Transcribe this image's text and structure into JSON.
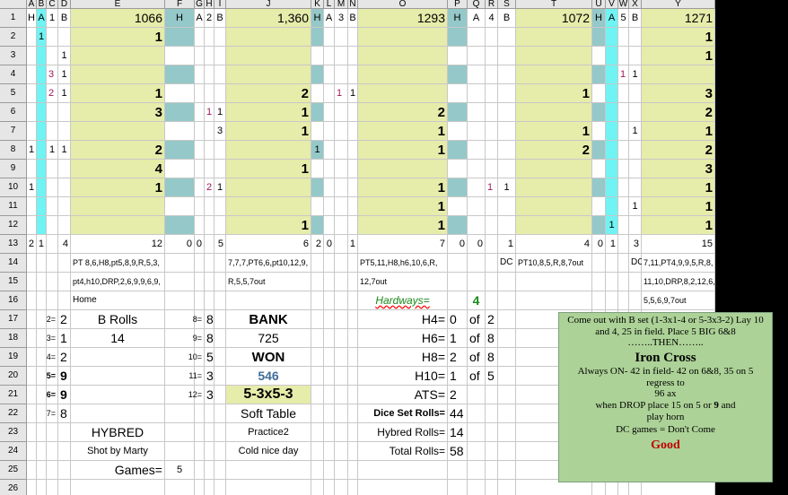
{
  "app": "Spreadsheet",
  "columns": [
    "A",
    "B",
    "C",
    "D",
    "E",
    "F",
    "G",
    "H",
    "I",
    "J",
    "K",
    "L",
    "M",
    "N",
    "O",
    "P",
    "Q",
    "R",
    "S",
    "T",
    "U",
    "V",
    "W",
    "X",
    "Y"
  ],
  "rows": [
    "1",
    "2",
    "3",
    "4",
    "5",
    "6",
    "7",
    "8",
    "9",
    "10",
    "11",
    "12",
    "13",
    "14",
    "15",
    "16",
    "17",
    "18",
    "19",
    "20",
    "21",
    "22",
    "23",
    "24",
    "25",
    "26"
  ],
  "cells": {
    "A1": "H",
    "B1": "A",
    "C1": "1",
    "D1": "B",
    "E1": "1066",
    "F1": "H",
    "G1": "A",
    "H1": "2",
    "I1": "B",
    "J1": "1,360",
    "K1": "H",
    "L1": "A",
    "M1": "3",
    "N1": "B",
    "O1": "1293",
    "P1": "H",
    "Q1": "A",
    "R1": "4",
    "S1": "B",
    "T1": "1072",
    "U1": "H",
    "V1": "A",
    "W1": "5",
    "X1": "B",
    "Y1": "1271",
    "B2": "1",
    "E2": "1",
    "Y2": "1",
    "D3": "1",
    "Y3": "1",
    "C4": "3",
    "D4": "1",
    "W4": "1",
    "X4": "1",
    "C5": "2",
    "D5": "1",
    "E5": "1",
    "J5": "2",
    "M5": "1",
    "N5": "1",
    "T5": "1",
    "Y5": "3",
    "E6": "3",
    "H6": "1",
    "I6": "1",
    "J6": "1",
    "O6": "2",
    "Y6": "2",
    "I7": "3",
    "J7": "1",
    "O7": "1",
    "T7": "1",
    "X7": "1",
    "Y7": "1",
    "A8": "1",
    "C8": "1",
    "D8": "1",
    "E8": "2",
    "K8": "1",
    "O8": "1",
    "T8": "2",
    "Y8": "2",
    "E9": "4",
    "J9": "1",
    "Y9": "3",
    "A10": "1",
    "E10": "1",
    "H10": "2",
    "I10": "1",
    "O10": "1",
    "R10": "1",
    "S10": "1",
    "Y10": "1",
    "O11": "1",
    "X11": "1",
    "Y11": "1",
    "J12": "1",
    "O12": "1",
    "V12": "1",
    "Y12": "1",
    "A13": "2",
    "B13": "1",
    "D13": "4",
    "E13": "12",
    "F13": "0",
    "G13": "0",
    "I13": "5",
    "J13": "6",
    "K13": "2",
    "L13": "0",
    "N13": "1",
    "O13": "7",
    "P13": "0",
    "Q13": "0",
    "S13": "1",
    "T13": "4",
    "U13": "0",
    "V13": "1",
    "X13": "3",
    "Y13": "15",
    "E14": "PT 8,6,H8,pt5,8,9,R,5,3,",
    "J14": "7,7,7,PT6,6,pt10,12,9,",
    "O14": "PT5,11,H8,h6,10,6,R,",
    "S14": "DC",
    "T14": "PT10,8,5,R,8,7out",
    "X14": "DC",
    "Y14": "7,11,PT4,9,9,5,R,8,",
    "E15": "pt4,h10,DRP,2,6,9,9,6,9,",
    "J15": "R,5,5,7out",
    "O15": "12,7out",
    "Y15": "11,10,DRP,8,2,12,6,",
    "E16": "Home",
    "O16": "Hardways=",
    "Q16": "4",
    "Y16": "5,5,6,9,7out",
    "C17": "2=",
    "D17": "2",
    "E17": "B Rolls",
    "G17": "8=",
    "H17": "8",
    "J17": "BANK",
    "O17": "H4=",
    "P17": "0",
    "Q17": "of",
    "R17": "2",
    "C18": "3=",
    "D18": "1",
    "E18": "14",
    "G18": "9=",
    "H18": "8",
    "J18": "725",
    "O18": "H6=",
    "P18": "1",
    "Q18": "of",
    "R18": "8",
    "C19": "4=",
    "D19": "2",
    "G19": "10=",
    "H19": "5",
    "J19": "WON",
    "O19": "H8=",
    "P19": "2",
    "Q19": "of",
    "R19": "8",
    "C20": "5=",
    "D20": "9",
    "G20": "11=",
    "H20": "3",
    "J20": "546",
    "O20": "H10=",
    "P20": "1",
    "Q20": "of",
    "R20": "5",
    "C21": "6=",
    "D21": "9",
    "G21": "12=",
    "H21": "3",
    "J21": "5-3x5-3",
    "O21": "ATS=",
    "P21": "2",
    "C22": "7=",
    "D22": "8",
    "J22": "Soft Table",
    "O22": "Dice Set Rolls=",
    "P22": "44",
    "E23": "HYBRED",
    "J23": "Practice2",
    "O23": "Hybred Rolls=",
    "P23": "14",
    "E24": "Shot by Marty",
    "J24": "Cold nice day",
    "O24": "Total Rolls=",
    "P24": "58",
    "E25": "Games=",
    "F25": "5"
  },
  "notes": {
    "line1": "Come out with B set (1-3x1-4 or 5-3x3-2) Lay 10",
    "line2": "and 4, 25 in field. Place 5 BIG 6&8",
    "line3": "……..THEN……..",
    "title": "Iron Cross",
    "line4": "Always ON- 42 in field- 42 on 6&8, 35 on 5",
    "line5": "regress to",
    "line6": "96 ax",
    "line7": "when DROP place 15 on 5 or",
    "line7b": "9",
    "line7c": "and",
    "line8": "play horn",
    "line9": "DC games = Don't Come",
    "good": "Good"
  },
  "colors": {
    "green": "#e6ecaa",
    "teal": "#95c8c8",
    "cyan": "#6ff3f3",
    "notes_bg": "#acd297",
    "accent_red": "#c00000",
    "hardways_green": "#1a8a1a"
  }
}
